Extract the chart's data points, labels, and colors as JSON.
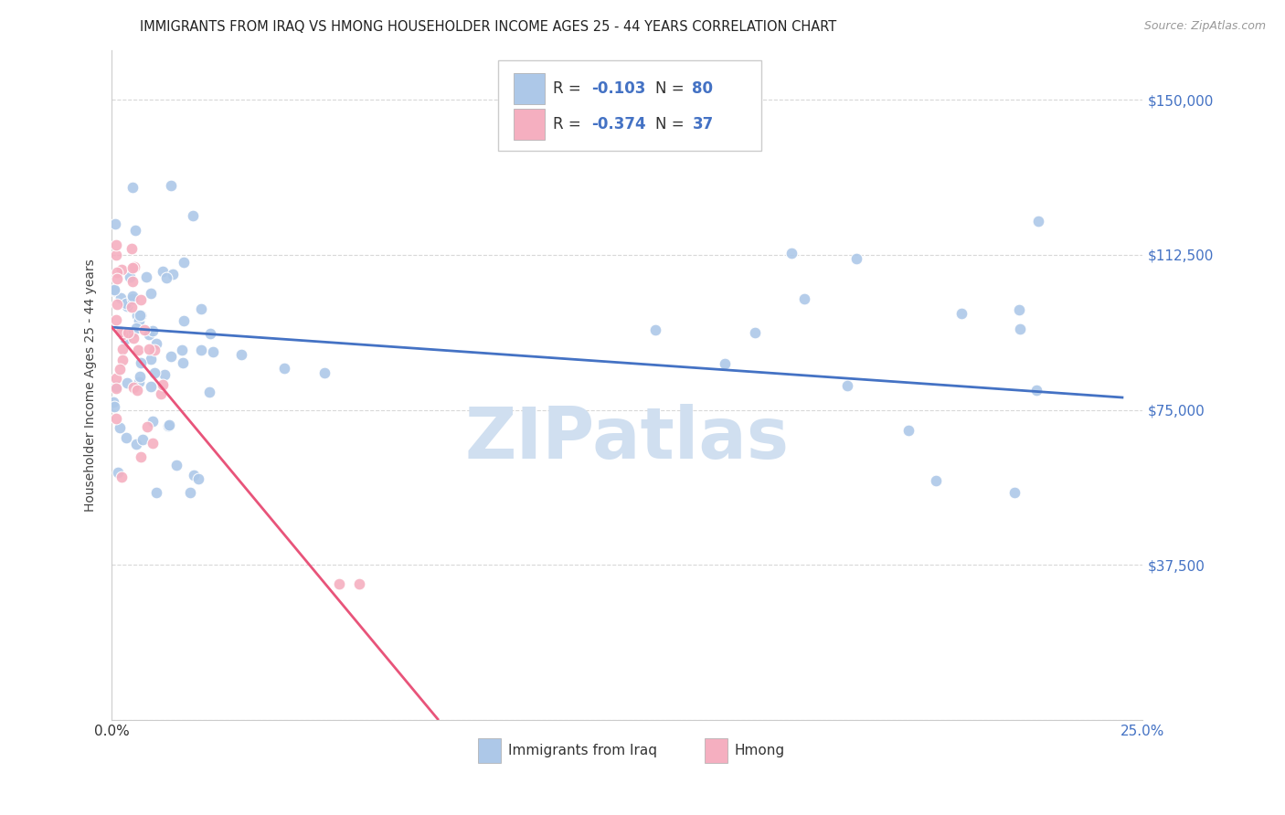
{
  "title": "IMMIGRANTS FROM IRAQ VS HMONG HOUSEHOLDER INCOME AGES 25 - 44 YEARS CORRELATION CHART",
  "source": "Source: ZipAtlas.com",
  "ylabel": "Householder Income Ages 25 - 44 years",
  "xlim": [
    0.0,
    0.25
  ],
  "ylim": [
    0,
    162000
  ],
  "yticks": [
    0,
    37500,
    75000,
    112500,
    150000
  ],
  "ytick_labels": [
    "",
    "$37,500",
    "$75,000",
    "$112,500",
    "$150,000"
  ],
  "xticks": [
    0.0,
    0.05,
    0.1,
    0.15,
    0.2,
    0.25
  ],
  "iraq_R": -0.103,
  "iraq_N": 80,
  "hmong_R": -0.374,
  "hmong_N": 37,
  "iraq_color": "#adc8e8",
  "hmong_color": "#f5afc0",
  "iraq_line_color": "#4472c4",
  "hmong_line_color": "#e8547a",
  "background_color": "#ffffff",
  "grid_color": "#d8d8d8",
  "watermark_color": "#d0dff0",
  "title_fontsize": 10.5,
  "tick_label_color": "#4472c4",
  "legend_label_color": "#4472c4"
}
